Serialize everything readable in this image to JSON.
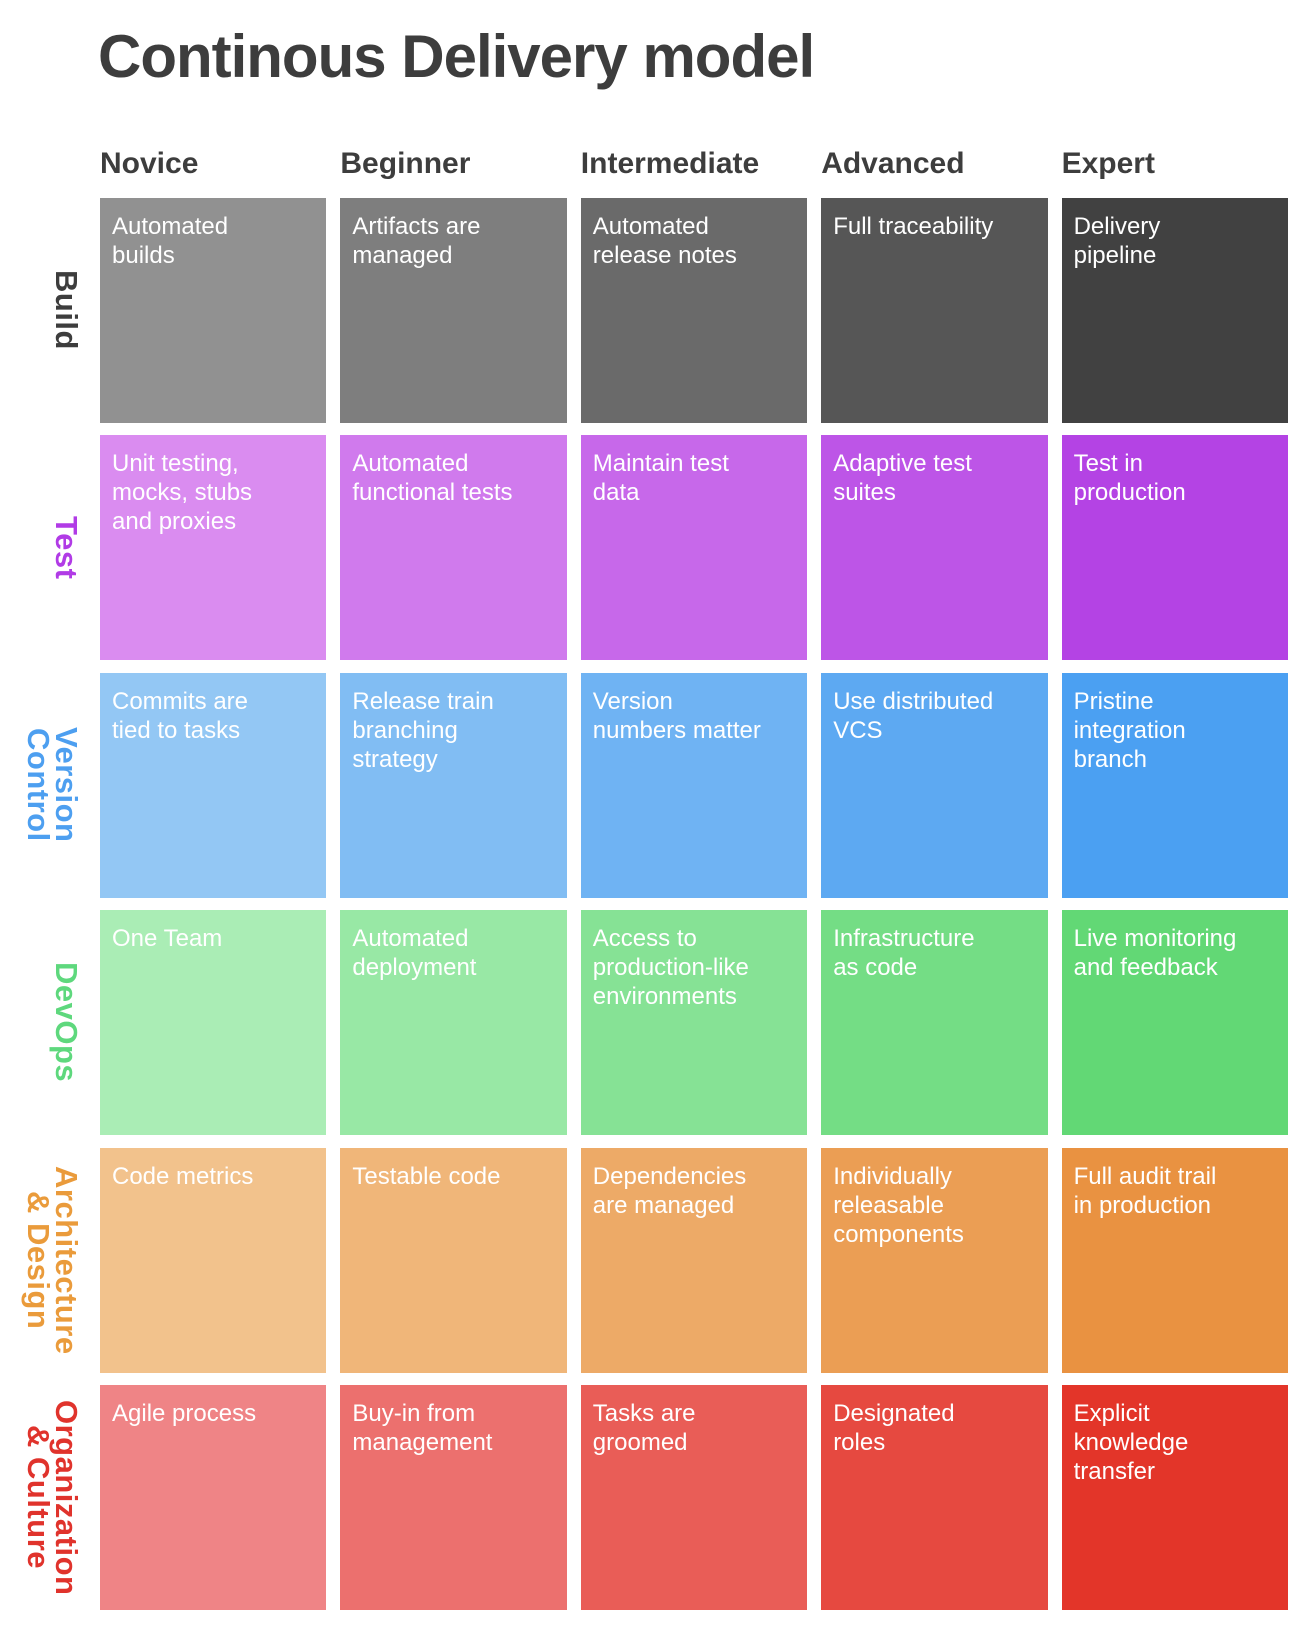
{
  "title": "Continous Delivery model",
  "heading_color": "#3d3d3d",
  "cell_text_color": "#ffffff",
  "columns": [
    {
      "key": "novice",
      "label": "Novice"
    },
    {
      "key": "beginner",
      "label": "Beginner"
    },
    {
      "key": "intermediate",
      "label": "Intermediate"
    },
    {
      "key": "advanced",
      "label": "Advanced"
    },
    {
      "key": "expert",
      "label": "Expert"
    }
  ],
  "rows": [
    {
      "key": "build",
      "label": "Build",
      "label_color": "#3d3d3d",
      "cell_colors": [
        "#919191",
        "#7e7e7e",
        "#6a6a6a",
        "#565656",
        "#414141"
      ],
      "cells": [
        "Automated\nbuilds",
        "Artifacts are\nmanaged",
        "Automated\nrelease notes",
        "Full traceability",
        "Delivery\npipeline"
      ]
    },
    {
      "key": "test",
      "label": "Test",
      "label_color": "#b13be6",
      "cell_colors": [
        "#da8cf0",
        "#d07aed",
        "#c768ea",
        "#bd55e7",
        "#b443e4"
      ],
      "cells": [
        "Unit testing,\nmocks, stubs\nand proxies",
        "Automated\nfunctional tests",
        "Maintain test\ndata",
        "Adaptive test\nsuites",
        "Test in\nproduction"
      ]
    },
    {
      "key": "version-control",
      "label": "Version\nControl",
      "label_color": "#4d9ff0",
      "cell_colors": [
        "#93c7f4",
        "#81bdf3",
        "#6fb3f3",
        "#5da9f2",
        "#4ba0f2"
      ],
      "cells": [
        "Commits are\ntied to tasks",
        "Release train\nbranching\nstrategy",
        "Version\nnumbers matter",
        "Use distributed\nVCS",
        "Pristine\nintegration\nbranch"
      ]
    },
    {
      "key": "devops",
      "label": "DevOps",
      "label_color": "#5ed87d",
      "cell_colors": [
        "#aaedb5",
        "#98e8a5",
        "#86e295",
        "#74dd85",
        "#62d875"
      ],
      "cells": [
        "One Team",
        "Automated\ndeployment",
        "Access to\nproduction-like\nenvironments",
        "Infrastructure\nas code",
        "Live monitoring\nand feedback"
      ]
    },
    {
      "key": "architecture-design",
      "label": "Architecture\n& Design",
      "label_color": "#ea9b3b",
      "cell_colors": [
        "#f2c28c",
        "#f0b679",
        "#edaa67",
        "#eb9e54",
        "#e99241"
      ],
      "cells": [
        "Code metrics",
        "Testable code",
        "Dependencies\nare managed",
        "Individually\nreleasable\ncomponents",
        "Full audit trail\nin production"
      ]
    },
    {
      "key": "organization-culture",
      "label": "Organization\n& Culture",
      "label_color": "#e0332c",
      "cell_colors": [
        "#ef8486",
        "#ec706e",
        "#e95d57",
        "#e64940",
        "#e33529"
      ],
      "cells": [
        "Agile process",
        "Buy-in from\nmanagement",
        "Tasks are\ngroomed",
        "Designated\nroles",
        "Explicit\nknowledge\ntransfer"
      ]
    }
  ]
}
